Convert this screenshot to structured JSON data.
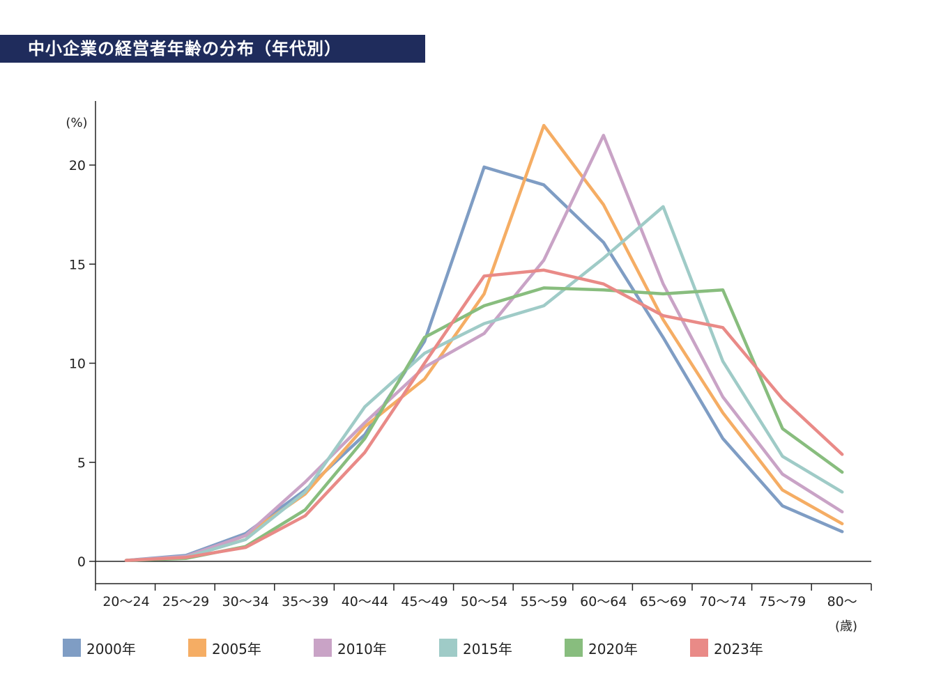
{
  "title": "中小企業の経営者年齢の分布（年代別）",
  "chart_data": {
    "type": "line",
    "title": "中小企業の経営者年齢の分布（年代別）",
    "ylabel": "(%)",
    "xlabel": "(歳)",
    "ylim": [
      0,
      22.5
    ],
    "yticks": [
      0,
      5,
      10,
      15,
      20
    ],
    "grid": false,
    "legend_position": "bottom",
    "categories": [
      "20～24",
      "25～29",
      "30～34",
      "35～39",
      "40～44",
      "45～49",
      "50～54",
      "55～59",
      "60～64",
      "65～69",
      "70～74",
      "75～79",
      "80～"
    ],
    "series": [
      {
        "name": "2000年",
        "color": "#7f9dc4",
        "values": [
          0.05,
          0.3,
          1.4,
          3.6,
          6.4,
          11.1,
          19.9,
          19.0,
          16.1,
          11.3,
          6.2,
          2.8,
          1.5
        ]
      },
      {
        "name": "2005年",
        "color": "#f5ad64",
        "values": [
          0.05,
          0.2,
          1.3,
          3.4,
          6.8,
          9.2,
          13.5,
          22.0,
          18.0,
          12.2,
          7.5,
          3.6,
          1.9
        ]
      },
      {
        "name": "2010年",
        "color": "#c9a3c6",
        "values": [
          0.05,
          0.25,
          1.3,
          4.0,
          7.0,
          9.8,
          11.5,
          15.2,
          21.5,
          14.0,
          8.3,
          4.4,
          2.5
        ]
      },
      {
        "name": "2015年",
        "color": "#9fcbc7",
        "values": [
          0.05,
          0.2,
          1.1,
          3.5,
          7.8,
          10.5,
          12.0,
          12.9,
          15.3,
          17.9,
          10.1,
          5.3,
          3.5
        ]
      },
      {
        "name": "2020年",
        "color": "#88bd7e",
        "values": [
          0.05,
          0.15,
          0.75,
          2.6,
          6.2,
          11.3,
          12.9,
          13.8,
          13.7,
          13.5,
          13.7,
          6.7,
          4.5
        ]
      },
      {
        "name": "2023年",
        "color": "#e98a87",
        "values": [
          0.05,
          0.2,
          0.7,
          2.3,
          5.5,
          10.0,
          14.4,
          14.7,
          14.0,
          12.4,
          11.8,
          8.2,
          5.4
        ]
      }
    ]
  }
}
